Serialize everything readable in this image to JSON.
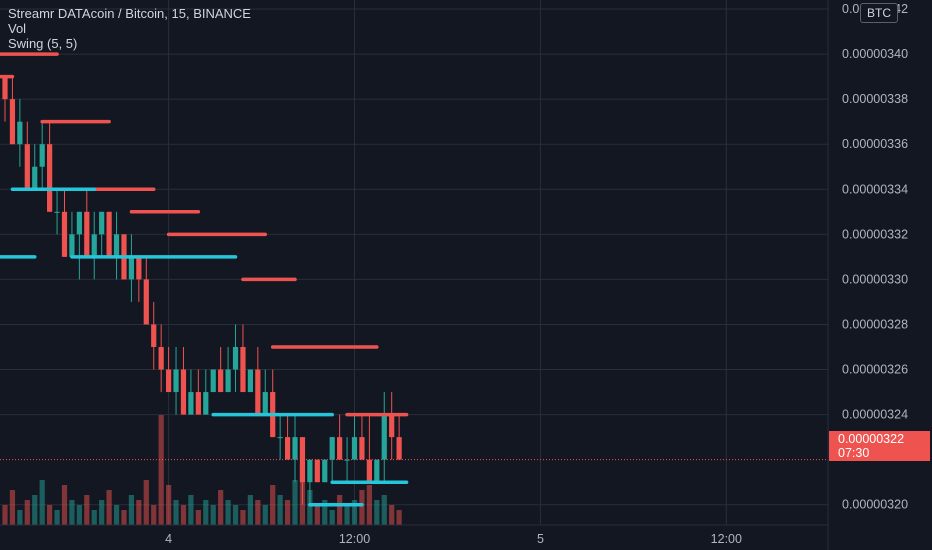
{
  "legend": {
    "title": "Streamr DATAcoin / Bitcoin, 15, BINANCE",
    "indicator_vol": "Vol",
    "indicator_swing": "Swing (5, 5)"
  },
  "currency_badge": "BTC",
  "last_price": {
    "value": "0.00000322",
    "countdown": "07:30"
  },
  "colors": {
    "background": "#131722",
    "grid": "#2a2e39",
    "up": "#26a69a",
    "down": "#ef5350",
    "swing_high": "#ef5350",
    "swing_low": "#26c6da",
    "axis_text": "#b2b5be"
  },
  "chart_data": {
    "type": "candlestick",
    "y_axis": {
      "ticks": [
        "0.00000342",
        "0.00000340",
        "0.00000338",
        "0.00000336",
        "0.00000334",
        "0.00000332",
        "0.00000330",
        "0.00000328",
        "0.00000326",
        "0.00000324",
        "0.00000320"
      ],
      "tick_values": [
        342,
        340,
        338,
        336,
        334,
        332,
        330,
        328,
        326,
        324,
        320
      ],
      "scale": 1e-08,
      "ylim": [
        319.1,
        342.4
      ]
    },
    "x_axis": {
      "range": [
        0,
        110
      ],
      "ticks": [
        {
          "label": "4",
          "x": 22
        },
        {
          "label": "12:00",
          "x": 47
        },
        {
          "label": "5",
          "x": 72
        },
        {
          "label": "12:00",
          "x": 97
        }
      ]
    },
    "candles": [
      [
        0,
        339,
        339,
        337,
        338
      ],
      [
        1,
        338,
        339,
        336,
        336
      ],
      [
        2,
        336,
        338,
        335,
        337
      ],
      [
        3,
        336,
        337,
        334,
        334
      ],
      [
        4,
        334,
        336,
        334,
        335
      ],
      [
        5,
        335,
        337,
        334,
        336
      ],
      [
        6,
        336,
        337,
        333,
        333
      ],
      [
        7,
        333,
        334,
        332,
        333
      ],
      [
        8,
        333,
        334,
        331,
        331
      ],
      [
        9,
        331,
        333,
        331,
        332
      ],
      [
        10,
        332,
        333,
        330,
        333
      ],
      [
        11,
        333,
        334,
        331,
        331
      ],
      [
        12,
        331,
        333,
        330,
        332
      ],
      [
        13,
        332,
        333,
        331,
        333
      ],
      [
        14,
        333,
        333,
        331,
        331
      ],
      [
        15,
        331,
        333,
        330,
        332
      ],
      [
        16,
        332,
        332,
        330,
        330
      ],
      [
        17,
        330,
        332,
        329,
        331
      ],
      [
        18,
        331,
        331,
        329,
        330
      ],
      [
        19,
        330,
        331,
        328,
        328
      ],
      [
        20,
        328,
        329,
        326,
        327
      ],
      [
        21,
        327,
        328,
        325,
        326
      ],
      [
        22,
        326,
        327,
        325,
        325
      ],
      [
        23,
        325,
        327,
        324,
        326
      ],
      [
        24,
        326,
        327,
        324,
        324
      ],
      [
        25,
        324,
        326,
        324,
        325
      ],
      [
        26,
        325,
        326,
        324,
        324
      ],
      [
        27,
        324,
        326,
        324,
        325
      ],
      [
        28,
        325,
        326,
        325,
        326
      ],
      [
        29,
        326,
        327,
        325,
        325
      ],
      [
        30,
        325,
        327,
        325,
        326
      ],
      [
        31,
        326,
        328,
        325,
        327
      ],
      [
        32,
        327,
        328,
        325,
        325
      ],
      [
        33,
        325,
        326,
        325,
        326
      ],
      [
        34,
        326,
        327,
        324,
        324
      ],
      [
        35,
        324,
        326,
        324,
        325
      ],
      [
        36,
        325,
        326,
        323,
        323
      ],
      [
        37,
        323,
        324,
        322,
        323
      ],
      [
        38,
        323,
        324,
        322,
        322
      ],
      [
        39,
        322,
        324,
        321,
        323
      ],
      [
        40,
        323,
        323,
        320,
        321
      ],
      [
        41,
        321,
        322,
        320,
        322
      ],
      [
        42,
        322,
        322,
        321,
        321
      ],
      [
        43,
        321,
        322,
        321,
        322
      ],
      [
        44,
        322,
        323,
        321,
        323
      ],
      [
        45,
        323,
        324,
        322,
        322
      ],
      [
        46,
        322,
        323,
        321,
        322
      ],
      [
        47,
        322,
        324,
        322,
        323
      ],
      [
        48,
        323,
        324,
        322,
        322
      ],
      [
        49,
        322,
        324,
        321,
        321
      ],
      [
        50,
        321,
        322,
        321,
        322
      ],
      [
        51,
        322,
        325,
        321,
        324
      ],
      [
        52,
        324,
        325,
        322,
        323
      ],
      [
        53,
        323,
        324,
        322,
        322
      ]
    ],
    "volume": [
      4,
      7,
      3,
      5,
      6,
      9,
      4,
      3,
      8,
      5,
      4,
      6,
      3,
      5,
      7,
      4,
      3,
      6,
      5,
      9,
      4,
      22,
      8,
      5,
      4,
      6,
      3,
      5,
      4,
      7,
      5,
      4,
      3,
      6,
      5,
      4,
      8,
      6,
      5,
      9,
      12,
      7,
      4,
      5,
      3,
      6,
      4,
      5,
      7,
      8,
      5,
      6,
      4,
      3
    ],
    "swing_highs": [
      {
        "price": 340,
        "from": -1,
        "to": 7
      },
      {
        "price": 339,
        "from": -1,
        "to": 1
      },
      {
        "price": 337,
        "from": 5,
        "to": 14
      },
      {
        "price": 334,
        "from": 6,
        "to": 20
      },
      {
        "price": 333,
        "from": 17,
        "to": 26
      },
      {
        "price": 332,
        "from": 22,
        "to": 35
      },
      {
        "price": 330,
        "from": 32,
        "to": 39
      },
      {
        "price": 327,
        "from": 36,
        "to": 50
      },
      {
        "price": 324,
        "from": 46,
        "to": 54
      }
    ],
    "swing_lows": [
      {
        "price": 331,
        "from": -1,
        "to": 4
      },
      {
        "price": 334,
        "from": 1,
        "to": 12
      },
      {
        "price": 331,
        "from": 9,
        "to": 31
      },
      {
        "price": 324,
        "from": 28,
        "to": 44
      },
      {
        "price": 320,
        "from": 41,
        "to": 48
      },
      {
        "price": 321,
        "from": 44,
        "to": 54
      }
    ],
    "last_price_value": 322
  }
}
